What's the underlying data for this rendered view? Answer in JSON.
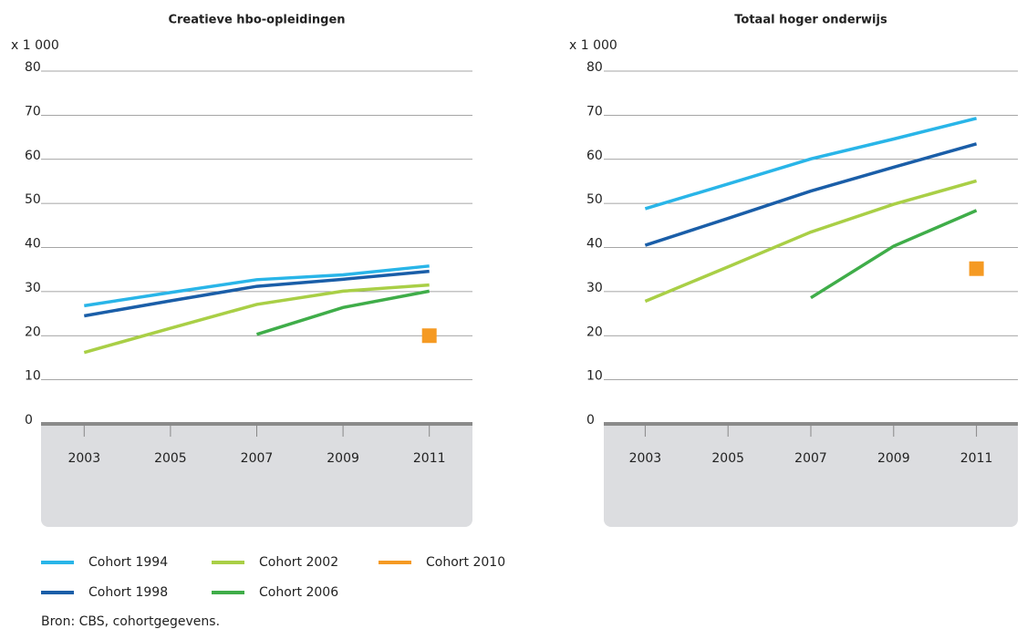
{
  "chart_data": [
    {
      "type": "line",
      "title": "Creatieve hbo-opleidingen",
      "y_unit": "x 1 000",
      "x": [
        2003,
        2005,
        2007,
        2009,
        2011
      ],
      "xlim": [
        2002,
        2012
      ],
      "xticks": [
        2003,
        2005,
        2007,
        2009,
        2011
      ],
      "ylim": [
        0,
        80
      ],
      "yticks": [
        0,
        10,
        20,
        30,
        40,
        50,
        60,
        70,
        80
      ],
      "grid": true,
      "series": [
        {
          "name": "Cohort 1994",
          "color": "#29b5e8",
          "values": [
            26.8,
            29.8,
            32.7,
            33.8,
            35.8
          ]
        },
        {
          "name": "Cohort 1998",
          "color": "#1a5ea8",
          "values": [
            24.5,
            27.9,
            31.2,
            32.8,
            34.6
          ]
        },
        {
          "name": "Cohort 2002",
          "color": "#a9cf46",
          "values": [
            16.2,
            21.7,
            27.1,
            30.1,
            31.5
          ]
        },
        {
          "name": "Cohort 2006",
          "color": "#3fad49",
          "values": [
            null,
            null,
            20.3,
            26.4,
            30.1
          ]
        },
        {
          "name": "Cohort 2010",
          "color": "#f59a23",
          "marker": "square",
          "values": [
            null,
            null,
            null,
            null,
            20
          ]
        }
      ]
    },
    {
      "type": "line",
      "title": "Totaal hoger onderwijs",
      "y_unit": "x 1 000",
      "x": [
        2003,
        2005,
        2007,
        2009,
        2011
      ],
      "xlim": [
        2002,
        2012
      ],
      "xticks": [
        2003,
        2005,
        2007,
        2009,
        2011
      ],
      "ylim": [
        0,
        80
      ],
      "yticks": [
        0,
        10,
        20,
        30,
        40,
        50,
        60,
        70,
        80
      ],
      "grid": true,
      "series": [
        {
          "color": "#29b5e8",
          "values": [
            48.8,
            54.4,
            60.1,
            64.6,
            69.3
          ]
        },
        {
          "color": "#1a5ea8",
          "values": [
            40.5,
            46.6,
            52.8,
            58.2,
            63.5
          ]
        },
        {
          "color": "#a9cf46",
          "values": [
            27.8,
            35.6,
            43.5,
            49.8,
            55.1
          ]
        },
        {
          "color": "#3fad49",
          "values": [
            null,
            null,
            28.6,
            40.3,
            48.4
          ]
        },
        {
          "color": "#f59a23",
          "marker": "square",
          "values": [
            null,
            null,
            null,
            null,
            35.2
          ]
        }
      ]
    }
  ],
  "source": "Bron: CBS, cohortgegevens."
}
